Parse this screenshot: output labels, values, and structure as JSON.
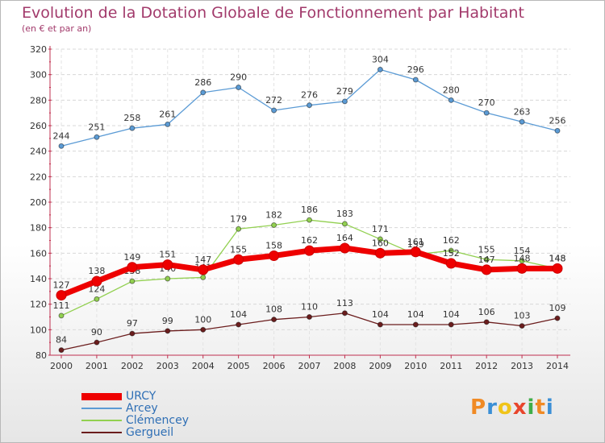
{
  "title": "Evolution de la Dotation Globale de Fonctionnement par Habitant",
  "subtitle": "(en € et par an)",
  "logo": {
    "text": "Proxiti",
    "colors": [
      "#f08a24",
      "#3a8fd6",
      "#f0c419",
      "#e8452c",
      "#3fae49",
      "#f08a24",
      "#3a8fd6"
    ]
  },
  "chart_data": {
    "type": "line",
    "x": [
      2000,
      2001,
      2002,
      2003,
      2004,
      2005,
      2006,
      2007,
      2008,
      2009,
      2010,
      2011,
      2012,
      2013,
      2014
    ],
    "ylim": [
      80,
      320
    ],
    "yticks": [
      80,
      100,
      120,
      140,
      160,
      180,
      200,
      220,
      240,
      260,
      280,
      300,
      320
    ],
    "grid": true,
    "legend": "bottom-left",
    "series": [
      {
        "name": "Gergueil",
        "color": "#6b1d1d",
        "values": [
          84,
          90,
          97,
          99,
          100,
          104,
          108,
          110,
          113,
          104,
          104,
          104,
          106,
          103,
          109
        ]
      },
      {
        "name": "Clémencey",
        "color": "#92d050",
        "values": [
          111,
          124,
          138,
          140,
          141,
          179,
          182,
          186,
          183,
          171,
          159,
          162,
          155,
          154,
          148
        ]
      },
      {
        "name": "Arcey",
        "color": "#5b9bd5",
        "values": [
          244,
          251,
          258,
          261,
          286,
          290,
          272,
          276,
          279,
          304,
          296,
          280,
          270,
          263,
          256
        ]
      },
      {
        "name": "URCY",
        "color": "#ee0000",
        "values": [
          127,
          138,
          149,
          151,
          147,
          155,
          158,
          162,
          164,
          160,
          161,
          152,
          147,
          148,
          148
        ]
      }
    ]
  }
}
